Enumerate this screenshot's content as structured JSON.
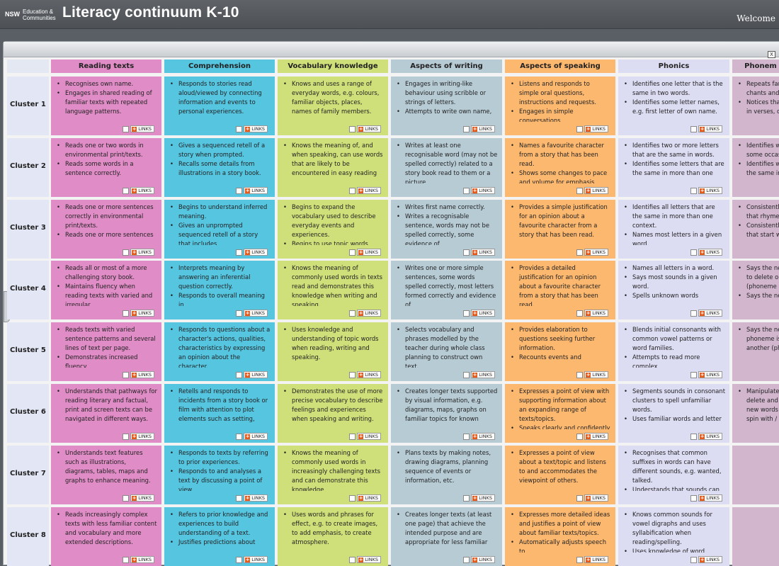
{
  "header": {
    "logo_primary": "NSW",
    "logo_secondary": "Education & Communities",
    "title": "Literacy continuum K-10",
    "welcome": "Welcome"
  },
  "panel": {
    "close_label": "X"
  },
  "link_label": "LINKS",
  "columns": [
    {
      "label": "Reading texts",
      "color": "#e08cc6"
    },
    {
      "label": "Comprehension",
      "color": "#56c5e0"
    },
    {
      "label": "Vocabulary knowledge",
      "color": "#cfe07a"
    },
    {
      "label": "Aspects of writing",
      "color": "#b7cbd5"
    },
    {
      "label": "Aspects of speaking",
      "color": "#fdb870"
    },
    {
      "label": "Phonics",
      "color": "#dcdcf3"
    },
    {
      "label": "Phonem",
      "color": "#d1b6ce"
    }
  ],
  "rows": [
    {
      "label": "Cluster 1",
      "cells": [
        [
          "Recognises own name.",
          "Engages in shared reading of familiar texts with repeated language patterns."
        ],
        [
          "Responds to stories read aloud/viewed by connecting information and events to personal experiences."
        ],
        [
          "Knows and uses a range of everyday words, e.g. colours, familiar objects, places, names of family members."
        ],
        [
          "Engages in writing-like behaviour using scribble or strings of letters.",
          "Attempts to write own name,"
        ],
        [
          "Listens and responds to simple oral questions, instructions and requests.",
          "Engages in simple conversations"
        ],
        [
          "Identifies one letter that is the same in two words.",
          "Identifies some letter names, e.g. first letter of own name."
        ],
        [
          "Repeats fam chants and",
          "Notices tha in verses, c"
        ]
      ]
    },
    {
      "label": "Cluster 2",
      "cells": [
        [
          "Reads one or two words in environmental print/texts.",
          "Reads some words in a sentence correctly."
        ],
        [
          "Gives a sequenced retell of a story when prompted.",
          "Recalls some details from illustrations in a story book."
        ],
        [
          "Knows the meaning of, and when speaking, can use words that are likely to be encountered in easy reading"
        ],
        [
          "Writes at least one recognisable word (may not be spelled correctly) related to a story book read to them or a picture"
        ],
        [
          "Names a favourite character from a story that has been read.",
          "Shows some changes to pace and volume for emphasis when"
        ],
        [
          "Identifies two or more letters that are the same in words.",
          "Identifies some letters that are the same in more than one"
        ],
        [
          "Identifies wh some occas",
          "Identifies w the same in"
        ]
      ]
    },
    {
      "label": "Cluster 3",
      "cells": [
        [
          "Reads one or more sentences correctly in environmental print/texts.",
          "Reads one or more sentences"
        ],
        [
          "Begins to understand inferred meaning.",
          "Gives an unprompted sequenced retell of a story that includes"
        ],
        [
          "Begins to expand the vocabulary used to describe everyday events and experiences.",
          "Begins to use topic words when"
        ],
        [
          "Writes first name correctly.",
          "Writes a recognisable sentence, words may not be spelled correctly, some evidence of"
        ],
        [
          "Provides a simple justification for an opinion about a favourite character from a story that has been read."
        ],
        [
          "Identifies all letters that are the same in more than one context.",
          "Names most letters in a given word."
        ],
        [
          "Consistently that rhyme",
          "Consistently that start w"
        ]
      ]
    },
    {
      "label": "Cluster 4",
      "cells": [
        [
          "Reads all or most of a more challenging story book.",
          "Maintains fluency when reading texts with varied and irregular"
        ],
        [
          "Interprets meaning by answering an inferential question correctly.",
          "Responds to overall meaning in"
        ],
        [
          "Knows the meaning of commonly used words in texts read and demonstrates this knowledge when writing and speaking."
        ],
        [
          "Writes one or more simple sentences, some words spelled correctly, most letters formed correctly and evidence of"
        ],
        [
          "Provides a detailed justification for an opinion about a favourite character from a story that has been read."
        ],
        [
          "Names all letters in a word.",
          "Says most sounds in a given word.",
          "Spells unknown words"
        ],
        [
          "Says the ne to delete o (phoneme d",
          "Says the ne"
        ]
      ]
    },
    {
      "label": "Cluster 5",
      "cells": [
        [
          "Reads texts with varied sentence patterns and several lines of text per page.",
          "Demonstrates increased fluency"
        ],
        [
          "Responds to questions about a character's actions, qualities, characteristics by expressing an opinion about the character."
        ],
        [
          "Uses knowledge and understanding of topic words when reading, writing and speaking."
        ],
        [
          "Selects vocabulary and phrases modelled by the teacher during whole class planning to construct own text."
        ],
        [
          "Provides elaboration to questions seeking further information.",
          "Recounts events and"
        ],
        [
          "Blends initial consonants with common vowel patterns or word families.",
          "Attempts to read more complex"
        ],
        [
          "Says the ne phoneme is another (ph"
        ]
      ]
    },
    {
      "label": "Cluster 6",
      "cells": [
        [
          "Understands that pathways for reading literary and factual, print and screen texts can be navigated in different ways."
        ],
        [
          "Retells and responds to incidents from a story book or film with attention to plot elements such as setting,"
        ],
        [
          "Demonstrates the use of more precise vocabulary to describe feelings and experiences when speaking and writing."
        ],
        [
          "Creates longer texts supported by visual information, e.g. diagrams, maps, graphs on familiar topics for known"
        ],
        [
          "Expresses a point of view with supporting information about an expanding range of texts/topics.",
          "Speaks clearly and confidently in"
        ],
        [
          "Segments sounds in consonant clusters to spell unfamiliar words.",
          "Uses familiar words and letter"
        ],
        [
          "Manipulate delete and new words spin with /"
        ]
      ]
    },
    {
      "label": "Cluster 7",
      "cells": [
        [
          "Understands text features such as illustrations, diagrams, tables, maps and graphs to enhance meaning."
        ],
        [
          "Responds to texts by referring to prior experiences.",
          "Responds to and analyses a text by discussing a point of view"
        ],
        [
          "Knows the meaning of commonly used words in increasingly challenging texts and can demonstrate this knowledge"
        ],
        [
          "Plans texts by making notes, drawing diagrams, planning sequence of events or information, etc."
        ],
        [
          "Expresses a point of view about a text/topic and listens to and accommodates the viewpoint of others."
        ],
        [
          "Recognises that common suffixes in words can have different sounds, e.g. wanted, talked.",
          "Understands that sounds can be"
        ],
        []
      ]
    },
    {
      "label": "Cluster 8",
      "cells": [
        [
          "Reads increasingly complex texts with less familiar content and vocabulary and more extended descriptions."
        ],
        [
          "Refers to prior knowledge and experiences to build understanding of a text.",
          "Justifies predictions about"
        ],
        [
          "Uses words and phrases for effect, e.g. to create images, to add emphasis, to create atmosphere."
        ],
        [
          "Creates longer texts (at least one page) that achieve the intended purpose and are appropriate for less familiar"
        ],
        [
          "Expresses more detailed ideas and justifies a point of view about familiar texts/topics.",
          "Automatically adjusts speech to"
        ],
        [
          "Knows common sounds for vowel digraphs and uses syllabification when reading/spelling.",
          "Uses knowledge of word"
        ],
        []
      ]
    }
  ]
}
